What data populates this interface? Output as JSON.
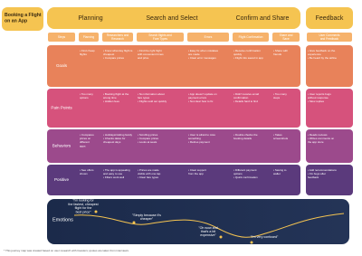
{
  "header": {
    "title": "Booking a Flight on an App"
  },
  "phases": [
    "Planning",
    "Search and Select",
    "Confirm and Share",
    "Feedback"
  ],
  "steps": [
    "Steps",
    "Planning",
    "Researchers and Research",
    "Search flights and Fare Types",
    "Errors",
    "Flight Confirmation",
    "Share and Save",
    "User Comments and Feedback"
  ],
  "rows": [
    {
      "label": "Goals",
      "cells": [
        [
          "• Find cheap",
          "  flights"
        ],
        [
          "• Know what day flight is",
          "  cheapest",
          "• Compare prices"
        ],
        [
          "• Find the right flight",
          "  with convenient times",
          "  and price"
        ],
        [
          "• Easy fix when mistakes",
          "  are made",
          "• Clear error messages"
        ],
        [
          "• Receive confirmation",
          "  quickly",
          "• Flight info saved in app"
        ],
        [
          "• Share with",
          "  friends"
        ],
        [
          "• Give feedback on the",
          "  experience",
          "• Be heard by the airline"
        ]
      ]
    },
    {
      "label": "Pain Points",
      "cells": [
        [
          "• Too many",
          "  options"
        ],
        [
          "• Booking flight at the",
          "  wrong time",
          "• Hidden fees"
        ],
        [
          "• No information about",
          "  fare types",
          "• Flights sold out quickly"
        ],
        [
          "• App doesn't update on",
          "  payment errors",
          "• Not clear how to fix"
        ],
        [
          "• Didn't receive email",
          "  confirmation",
          "• Details hard to find"
        ],
        [
          "• Too many",
          "  steps"
        ],
        [
          "• User reports bugs",
          "  without response",
          "• Slow replies"
        ]
      ]
    },
    {
      "label": "Behaviors",
      "cells": [
        [
          "• Compares",
          "  prices on",
          "  different",
          "  apps"
        ],
        [
          "• Holidays/visiting family",
          "• Checks dates for",
          "  cheapest days"
        ],
        [
          "• Scrolling prices",
          "• Compare prices",
          "• Looks at seats"
        ],
        [
          "• User is afraid to miss",
          "  something",
          "• Retries payment"
        ],
        [
          "• Double checks the",
          "  booking details"
        ],
        [
          "• Takes",
          "  screenshots"
        ],
        [
          "• Reads reviews",
          "• Writes comments on",
          "  the app store"
        ]
      ]
    },
    {
      "label": "Positive",
      "cells": [
        [
          "• See offers",
          "  shown"
        ],
        [
          "• The app is appealing",
          "  and easy to use",
          "• Filters work well"
        ],
        [
          "• Prices are made",
          "  visible with one tap",
          "• Clear fare types"
        ],
        [
          "• Clear support",
          "  from the app"
        ],
        [
          "• Different payment",
          "  options",
          "• Quick confirmation"
        ],
        [
          "• Saving to",
          "  wallet"
        ],
        [
          "• Add recommendations",
          "• Fix bugs after",
          "  feedback"
        ]
      ]
    }
  ],
  "emotions": {
    "label": "Emotions",
    "quotes": [
      "\"I'm looking for the fastest, cheapest flight for the best price\"",
      "\"Simply because it's cheaper\"",
      "\"Oh wow and that's a bit expensive\"",
      "\"I'm very confused\""
    ]
  },
  "footer": "* This journey map was created based on user research with travelers; quotes are taken from interviews."
}
